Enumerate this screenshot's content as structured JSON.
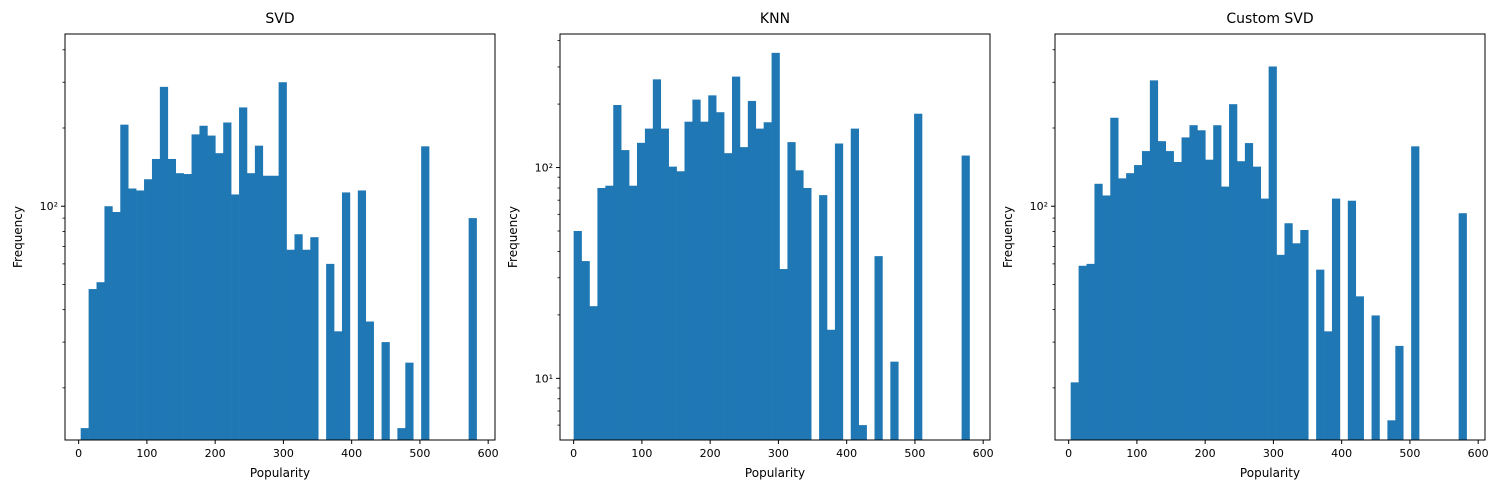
{
  "chart_data": [
    {
      "type": "bar",
      "title": "SVD",
      "xlabel": "Popularity",
      "ylabel": "Frequency",
      "xlim": [
        -20,
        610
      ],
      "ylim": [
        12.6,
        460
      ],
      "yscale": "log",
      "bar_color": "#1f77b4",
      "bin_width": 11.6,
      "xticks": [
        0,
        100,
        200,
        300,
        400,
        500,
        600
      ],
      "yticks_major": [
        {
          "value": 100,
          "label": "10²"
        }
      ],
      "yticks_minor": [
        20,
        30,
        40,
        50,
        60,
        70,
        80,
        90,
        200,
        300,
        400
      ],
      "bins": [
        {
          "x": 3,
          "value": 14
        },
        {
          "x": 14.6,
          "value": 48
        },
        {
          "x": 26.2,
          "value": 51
        },
        {
          "x": 37.8,
          "value": 100
        },
        {
          "x": 49.4,
          "value": 95
        },
        {
          "x": 61,
          "value": 206
        },
        {
          "x": 72.6,
          "value": 117
        },
        {
          "x": 84.2,
          "value": 115
        },
        {
          "x": 95.8,
          "value": 127
        },
        {
          "x": 107.4,
          "value": 152
        },
        {
          "x": 119,
          "value": 288
        },
        {
          "x": 130.6,
          "value": 152
        },
        {
          "x": 142.2,
          "value": 134
        },
        {
          "x": 153.8,
          "value": 133
        },
        {
          "x": 165.4,
          "value": 189
        },
        {
          "x": 177,
          "value": 204
        },
        {
          "x": 188.6,
          "value": 187
        },
        {
          "x": 200.2,
          "value": 160
        },
        {
          "x": 211.8,
          "value": 210
        },
        {
          "x": 223.4,
          "value": 111
        },
        {
          "x": 235,
          "value": 240
        },
        {
          "x": 246.6,
          "value": 134
        },
        {
          "x": 258.2,
          "value": 171
        },
        {
          "x": 269.8,
          "value": 131
        },
        {
          "x": 281.4,
          "value": 131
        },
        {
          "x": 293,
          "value": 300
        },
        {
          "x": 304.6,
          "value": 68
        },
        {
          "x": 316.2,
          "value": 78
        },
        {
          "x": 327.8,
          "value": 68
        },
        {
          "x": 339.4,
          "value": 76
        },
        {
          "x": 362.6,
          "value": 60
        },
        {
          "x": 374.2,
          "value": 33
        },
        {
          "x": 385.8,
          "value": 113
        },
        {
          "x": 409,
          "value": 115
        },
        {
          "x": 420.6,
          "value": 36
        },
        {
          "x": 443.8,
          "value": 30
        },
        {
          "x": 467,
          "value": 14
        },
        {
          "x": 478.6,
          "value": 25
        },
        {
          "x": 501.8,
          "value": 170
        },
        {
          "x": 571.4,
          "value": 90
        }
      ]
    },
    {
      "type": "bar",
      "title": "KNN",
      "xlabel": "Popularity",
      "ylabel": "Frequency",
      "xlim": [
        -20,
        610
      ],
      "ylim": [
        5.1,
        430
      ],
      "yscale": "log",
      "bar_color": "#1f77b4",
      "bin_width": 11.6,
      "xticks": [
        0,
        100,
        200,
        300,
        400,
        500,
        600
      ],
      "yticks_major": [
        {
          "value": 10,
          "label": "10¹"
        },
        {
          "value": 100,
          "label": "10²"
        }
      ],
      "yticks_minor": [
        6,
        7,
        8,
        9,
        20,
        30,
        40,
        50,
        60,
        70,
        80,
        90,
        200,
        300,
        400
      ],
      "bins": [
        {
          "x": 0,
          "value": 50
        },
        {
          "x": 11.6,
          "value": 36
        },
        {
          "x": 23.2,
          "value": 22
        },
        {
          "x": 34.8,
          "value": 80
        },
        {
          "x": 46.4,
          "value": 82
        },
        {
          "x": 58,
          "value": 198
        },
        {
          "x": 69.6,
          "value": 121
        },
        {
          "x": 81.2,
          "value": 82
        },
        {
          "x": 92.8,
          "value": 131
        },
        {
          "x": 104.4,
          "value": 153
        },
        {
          "x": 116,
          "value": 262
        },
        {
          "x": 127.6,
          "value": 153
        },
        {
          "x": 139.2,
          "value": 101
        },
        {
          "x": 150.8,
          "value": 96
        },
        {
          "x": 162.4,
          "value": 165
        },
        {
          "x": 174,
          "value": 210
        },
        {
          "x": 185.6,
          "value": 165
        },
        {
          "x": 197.2,
          "value": 220
        },
        {
          "x": 208.8,
          "value": 183
        },
        {
          "x": 220.4,
          "value": 117
        },
        {
          "x": 232,
          "value": 270
        },
        {
          "x": 243.6,
          "value": 125
        },
        {
          "x": 255.2,
          "value": 207
        },
        {
          "x": 266.8,
          "value": 153
        },
        {
          "x": 278.4,
          "value": 164
        },
        {
          "x": 290,
          "value": 350
        },
        {
          "x": 301.6,
          "value": 33
        },
        {
          "x": 313.2,
          "value": 132
        },
        {
          "x": 324.8,
          "value": 97
        },
        {
          "x": 336.4,
          "value": 80
        },
        {
          "x": 359.6,
          "value": 74
        },
        {
          "x": 371.2,
          "value": 17
        },
        {
          "x": 382.8,
          "value": 130
        },
        {
          "x": 406,
          "value": 153
        },
        {
          "x": 417.6,
          "value": 6
        },
        {
          "x": 440.8,
          "value": 38
        },
        {
          "x": 464,
          "value": 12
        },
        {
          "x": 498.8,
          "value": 180
        },
        {
          "x": 568.4,
          "value": 114
        }
      ]
    },
    {
      "type": "bar",
      "title": "Custom SVD",
      "xlabel": "Popularity",
      "ylabel": "Frequency",
      "xlim": [
        -20,
        610
      ],
      "ylim": [
        12.6,
        460
      ],
      "yscale": "log",
      "bar_color": "#1f77b4",
      "bin_width": 11.6,
      "xticks": [
        0,
        100,
        200,
        300,
        400,
        500,
        600
      ],
      "yticks_major": [
        {
          "value": 100,
          "label": "10²"
        }
      ],
      "yticks_minor": [
        20,
        30,
        40,
        50,
        60,
        70,
        80,
        90,
        200,
        300,
        400
      ],
      "bins": [
        {
          "x": 3,
          "value": 21
        },
        {
          "x": 14.6,
          "value": 59
        },
        {
          "x": 26.2,
          "value": 60
        },
        {
          "x": 37.8,
          "value": 122
        },
        {
          "x": 49.4,
          "value": 110
        },
        {
          "x": 61,
          "value": 219
        },
        {
          "x": 72.6,
          "value": 128
        },
        {
          "x": 84.2,
          "value": 134
        },
        {
          "x": 95.8,
          "value": 144
        },
        {
          "x": 107.4,
          "value": 163
        },
        {
          "x": 119,
          "value": 305
        },
        {
          "x": 130.6,
          "value": 178
        },
        {
          "x": 142.2,
          "value": 163
        },
        {
          "x": 153.8,
          "value": 148
        },
        {
          "x": 165.4,
          "value": 184
        },
        {
          "x": 177,
          "value": 205
        },
        {
          "x": 188.6,
          "value": 196
        },
        {
          "x": 200.2,
          "value": 151
        },
        {
          "x": 211.8,
          "value": 205
        },
        {
          "x": 223.4,
          "value": 119
        },
        {
          "x": 235,
          "value": 247
        },
        {
          "x": 246.6,
          "value": 149
        },
        {
          "x": 258.2,
          "value": 175
        },
        {
          "x": 269.8,
          "value": 142
        },
        {
          "x": 281.4,
          "value": 107
        },
        {
          "x": 293,
          "value": 345
        },
        {
          "x": 304.6,
          "value": 65
        },
        {
          "x": 316.2,
          "value": 86
        },
        {
          "x": 327.8,
          "value": 72
        },
        {
          "x": 339.4,
          "value": 81
        },
        {
          "x": 362.6,
          "value": 57
        },
        {
          "x": 374.2,
          "value": 33
        },
        {
          "x": 385.8,
          "value": 107
        },
        {
          "x": 409,
          "value": 105
        },
        {
          "x": 420.6,
          "value": 45
        },
        {
          "x": 443.8,
          "value": 38
        },
        {
          "x": 467,
          "value": 15
        },
        {
          "x": 478.6,
          "value": 29
        },
        {
          "x": 501.8,
          "value": 170
        },
        {
          "x": 571.4,
          "value": 94
        }
      ]
    }
  ]
}
